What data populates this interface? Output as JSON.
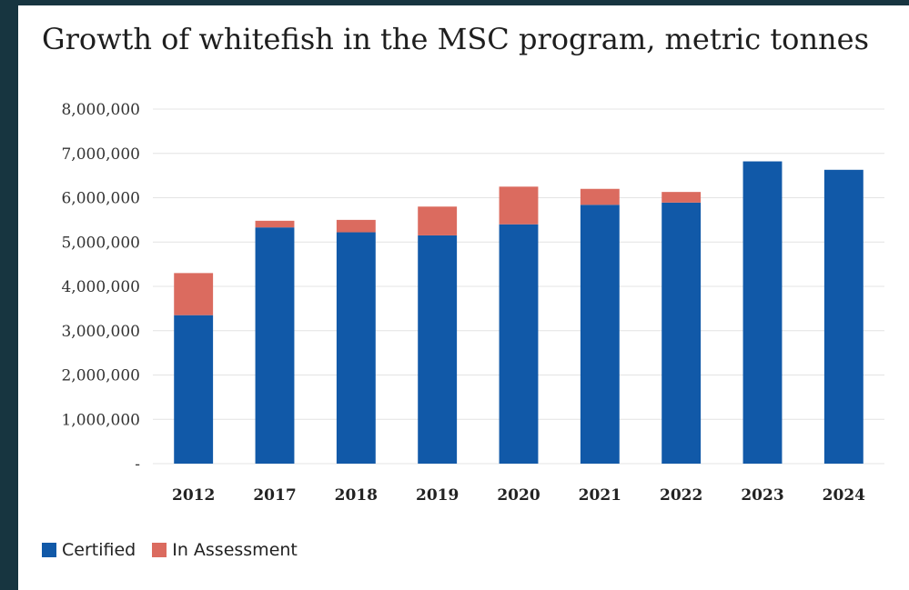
{
  "chart_data": {
    "type": "bar",
    "stacked": true,
    "title": "Growth of whitefish in the MSC program, metric tonnes",
    "xlabel": "",
    "ylabel": "",
    "categories": [
      "2012",
      "2017",
      "2018",
      "2019",
      "2020",
      "2021",
      "2022",
      "2023",
      "2024"
    ],
    "series": [
      {
        "name": "Certified",
        "color": "#1159a8",
        "values": [
          3350000,
          5330000,
          5220000,
          5150000,
          5400000,
          5840000,
          5890000,
          6820000,
          6630000
        ]
      },
      {
        "name": "In Assessment",
        "color": "#db6b5f",
        "values": [
          950000,
          150000,
          280000,
          650000,
          850000,
          360000,
          240000,
          0,
          0
        ]
      }
    ],
    "ylim": [
      0,
      8000000
    ],
    "yticks": [
      0,
      1000000,
      2000000,
      3000000,
      4000000,
      5000000,
      6000000,
      7000000,
      8000000
    ],
    "ytick_labels": [
      "-",
      "1,000,000",
      "2,000,000",
      "3,000,000",
      "4,000,000",
      "5,000,000",
      "6,000,000",
      "7,000,000",
      "8,000,000"
    ],
    "grid": true,
    "legend_position": "bottom-left"
  }
}
